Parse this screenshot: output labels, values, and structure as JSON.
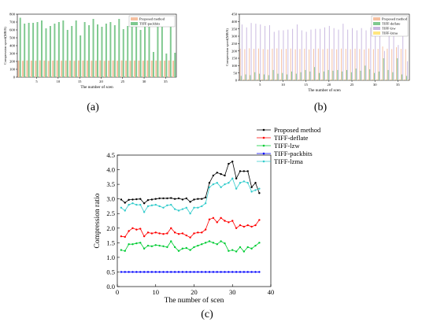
{
  "chart_data": [
    {
      "id": "a",
      "panel_label": "(a)",
      "type": "bar",
      "xlabel": "The number of scen",
      "ylabel": "Compression speed(MB/S)",
      "ylim": [
        0,
        800
      ],
      "yticks": [
        0,
        100,
        200,
        300,
        400,
        500,
        600,
        700,
        800
      ],
      "xticks": [
        5,
        10,
        15,
        20,
        25,
        30,
        35
      ],
      "categories": [
        1,
        2,
        3,
        4,
        5,
        6,
        7,
        8,
        9,
        10,
        11,
        12,
        13,
        14,
        15,
        16,
        17,
        18,
        19,
        20,
        21,
        22,
        23,
        24,
        25,
        26,
        27,
        28,
        29,
        30,
        31,
        32,
        33,
        34,
        35,
        36,
        37
      ],
      "legend_position": "top-right",
      "series": [
        {
          "name": "Proposed method",
          "color": "#f5c0a0",
          "values": [
            210,
            208,
            212,
            210,
            209,
            213,
            211,
            207,
            210,
            212,
            209,
            211,
            210,
            208,
            212,
            210,
            211,
            209,
            210,
            212,
            208,
            210,
            211,
            209,
            212,
            210,
            208,
            211,
            210,
            209,
            212,
            210,
            211,
            208,
            210,
            212,
            209
          ]
        },
        {
          "name": "TIFF-packbits",
          "color": "#7fc98f",
          "values": [
            755,
            680,
            690,
            690,
            700,
            720,
            620,
            650,
            680,
            700,
            720,
            600,
            650,
            720,
            530,
            700,
            660,
            740,
            670,
            640,
            680,
            700,
            660,
            740,
            610,
            650,
            720,
            670,
            600,
            700,
            680,
            320,
            640,
            720,
            300,
            720,
            310
          ]
        }
      ]
    },
    {
      "id": "b",
      "panel_label": "(b)",
      "type": "bar",
      "xlabel": "The number of scen",
      "ylabel": "Compression speed(MB/S)",
      "ylim": [
        0,
        450
      ],
      "yticks": [
        0,
        50,
        100,
        150,
        200,
        250,
        300,
        350,
        400,
        450
      ],
      "xticks": [
        5,
        10,
        15,
        20,
        25,
        30,
        35
      ],
      "categories": [
        1,
        2,
        3,
        4,
        5,
        6,
        7,
        8,
        9,
        10,
        11,
        12,
        13,
        14,
        15,
        16,
        17,
        18,
        19,
        20,
        21,
        22,
        23,
        24,
        25,
        26,
        27,
        28,
        29,
        30,
        31,
        32,
        33,
        34,
        35,
        36,
        37
      ],
      "legend_position": "top-right",
      "series": [
        {
          "name": "Proposed method",
          "color": "#f5c0a0",
          "values": [
            215,
            212,
            218,
            214,
            216,
            213,
            210,
            215,
            217,
            212,
            214,
            216,
            211,
            213,
            215,
            210,
            214,
            216,
            212,
            215,
            213,
            211,
            216,
            214,
            212,
            215,
            213,
            210,
            216,
            212,
            214,
            230,
            215,
            213,
            225,
            214,
            212
          ]
        },
        {
          "name": "TIFF-deflate",
          "color": "#7fc98f",
          "values": [
            30,
            40,
            35,
            55,
            45,
            40,
            35,
            70,
            45,
            50,
            40,
            60,
            45,
            55,
            70,
            60,
            90,
            50,
            60,
            70,
            65,
            70,
            60,
            70,
            55,
            80,
            65,
            100,
            75,
            50,
            60,
            150,
            70,
            55,
            150,
            40,
            30
          ]
        },
        {
          "name": "TIFF-lzw",
          "color": "#c9b8e0",
          "values": [
            380,
            360,
            390,
            385,
            380,
            370,
            375,
            330,
            340,
            340,
            345,
            350,
            380,
            340,
            330,
            345,
            350,
            350,
            360,
            370,
            355,
            345,
            385,
            345,
            355,
            340,
            355,
            340,
            360,
            345,
            355,
            200,
            300,
            345,
            240,
            380,
            130
          ]
        },
        {
          "name": "TIFF-lzma",
          "color": "#ffe680",
          "values": [
            5,
            5,
            5,
            5,
            5,
            5,
            5,
            5,
            5,
            5,
            5,
            5,
            5,
            5,
            5,
            5,
            5,
            5,
            5,
            5,
            5,
            5,
            5,
            5,
            5,
            5,
            5,
            5,
            5,
            5,
            5,
            5,
            5,
            5,
            5,
            5,
            5
          ]
        }
      ]
    },
    {
      "id": "c",
      "panel_label": "(c)",
      "type": "line",
      "xlabel": "The number of scen",
      "ylabel": "Compression ratio",
      "xlim": [
        0,
        40
      ],
      "ylim": [
        0.0,
        4.5
      ],
      "xticks": [
        0,
        10,
        20,
        30,
        40
      ],
      "yticks": [
        0.0,
        0.5,
        1.0,
        1.5,
        2.0,
        2.5,
        3.0,
        3.5,
        4.0,
        4.5
      ],
      "legend_position": "top-right",
      "x": [
        1,
        2,
        3,
        4,
        5,
        6,
        7,
        8,
        9,
        10,
        11,
        12,
        13,
        14,
        15,
        16,
        17,
        18,
        19,
        20,
        21,
        22,
        23,
        24,
        25,
        26,
        27,
        28,
        29,
        30,
        31,
        32,
        33,
        34,
        35,
        36,
        37
      ],
      "series": [
        {
          "name": "Proposed method",
          "color": "#000000",
          "values": [
            2.98,
            2.87,
            2.97,
            2.98,
            2.99,
            3.0,
            2.85,
            2.96,
            2.98,
            3.0,
            3.02,
            3.02,
            3.02,
            3.03,
            3.0,
            3.02,
            2.98,
            3.02,
            2.9,
            2.98,
            3.0,
            3.0,
            3.05,
            3.55,
            3.8,
            3.9,
            3.85,
            3.8,
            4.2,
            4.28,
            3.7,
            3.95,
            3.95,
            3.95,
            3.4,
            3.55,
            3.2
          ]
        },
        {
          "name": "TIFF-deflate",
          "color": "#ff0000",
          "values": [
            1.72,
            1.7,
            1.9,
            2.0,
            1.95,
            1.98,
            1.72,
            1.85,
            1.82,
            1.85,
            1.82,
            1.8,
            1.82,
            2.0,
            1.85,
            1.8,
            1.82,
            1.75,
            1.68,
            1.82,
            1.85,
            1.85,
            1.95,
            2.3,
            2.35,
            2.2,
            2.35,
            2.25,
            2.2,
            2.25,
            2.0,
            2.1,
            2.05,
            2.1,
            2.05,
            2.1,
            2.28
          ]
        },
        {
          "name": "TIFF-lzw",
          "color": "#00cc33",
          "values": [
            1.25,
            1.22,
            1.45,
            1.45,
            1.48,
            1.5,
            1.3,
            1.4,
            1.38,
            1.42,
            1.4,
            1.38,
            1.35,
            1.55,
            1.35,
            1.22,
            1.3,
            1.32,
            1.25,
            1.35,
            1.4,
            1.45,
            1.5,
            1.55,
            1.5,
            1.45,
            1.55,
            1.48,
            1.22,
            1.25,
            1.2,
            1.35,
            1.2,
            1.35,
            1.3,
            1.4,
            1.5
          ]
        },
        {
          "name": "TIFF-packbits",
          "color": "#0000ff",
          "values": [
            0.5,
            0.5,
            0.5,
            0.5,
            0.5,
            0.5,
            0.5,
            0.5,
            0.5,
            0.5,
            0.5,
            0.5,
            0.5,
            0.5,
            0.5,
            0.5,
            0.5,
            0.5,
            0.5,
            0.5,
            0.5,
            0.5,
            0.5,
            0.5,
            0.5,
            0.5,
            0.5,
            0.5,
            0.5,
            0.5,
            0.5,
            0.5,
            0.5,
            0.5,
            0.5,
            0.5,
            0.5
          ]
        },
        {
          "name": "TIFF-lzma",
          "color": "#33cccc",
          "values": [
            2.7,
            2.6,
            2.8,
            2.85,
            2.8,
            2.8,
            2.55,
            2.75,
            2.78,
            2.8,
            2.75,
            2.7,
            2.78,
            2.8,
            2.65,
            2.6,
            2.65,
            2.7,
            2.5,
            2.7,
            2.7,
            2.75,
            2.85,
            3.4,
            3.5,
            3.55,
            3.4,
            3.5,
            3.55,
            3.7,
            3.35,
            3.55,
            3.6,
            3.55,
            3.25,
            3.3,
            3.35
          ]
        }
      ]
    }
  ]
}
